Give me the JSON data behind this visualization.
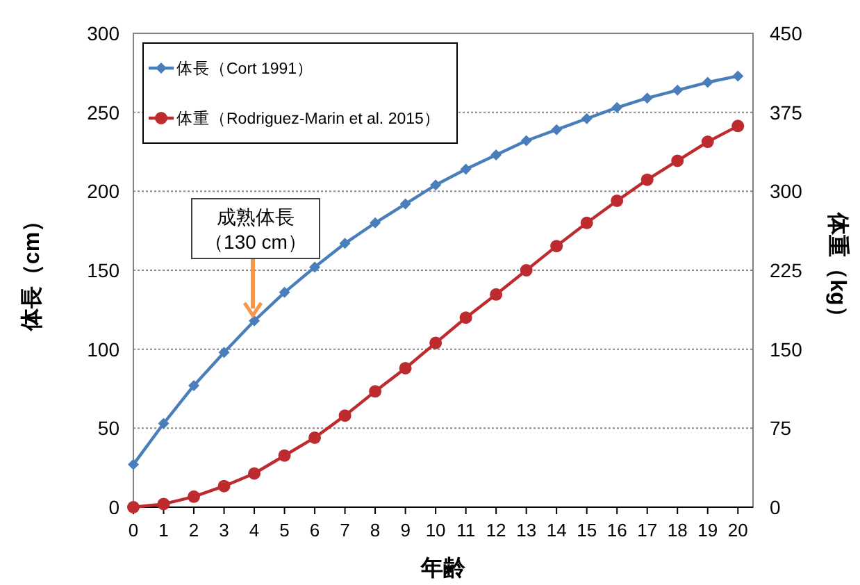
{
  "chart_data": {
    "type": "line",
    "xlabel": "年齢",
    "ylabel": "体長（cm）",
    "y2label": "体重（kg）",
    "x": [
      0,
      1,
      2,
      3,
      4,
      5,
      6,
      7,
      8,
      9,
      10,
      11,
      12,
      13,
      14,
      15,
      16,
      17,
      18,
      19,
      20
    ],
    "xlim": [
      0,
      20.5
    ],
    "xticks": [
      0,
      1,
      2,
      3,
      4,
      5,
      6,
      7,
      8,
      9,
      10,
      11,
      12,
      13,
      14,
      15,
      16,
      17,
      18,
      19,
      20
    ],
    "ylim": [
      0,
      300
    ],
    "yticks": [
      0,
      50,
      100,
      150,
      200,
      250,
      300
    ],
    "y2lim": [
      0,
      450
    ],
    "y2ticks": [
      0,
      75,
      150,
      225,
      300,
      375,
      450
    ],
    "grid": "y",
    "legend": "top left",
    "series": [
      {
        "name": "体長（Cort 1991）",
        "color": "#4a7ebb",
        "marker": "diamond",
        "values": [
          27,
          53,
          77,
          98,
          118,
          136,
          152,
          167,
          180,
          192,
          204,
          214,
          223,
          232,
          239,
          246,
          253,
          259,
          264,
          269,
          273
        ]
      },
      {
        "name": "体重（Rodriguez-Marin et al. 2015）",
        "color": "#be2b2f",
        "marker": "circle",
        "axis": "y2",
        "values": [
          0,
          3,
          10,
          20,
          32,
          49,
          66,
          87,
          110,
          132,
          156,
          180,
          202,
          225,
          248,
          270,
          291,
          311,
          329,
          347,
          362
        ]
      }
    ],
    "annotations": [
      "成熟体長",
      "（130 cm）"
    ]
  }
}
